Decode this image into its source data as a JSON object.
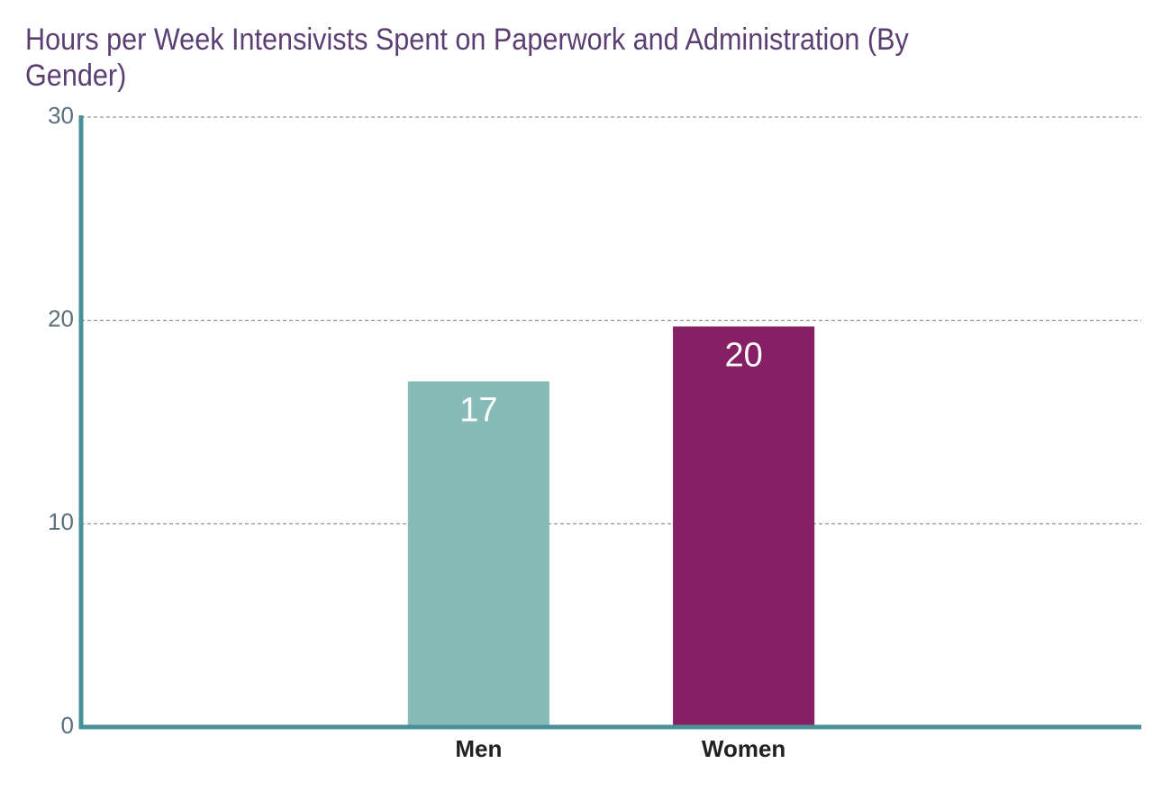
{
  "chart_data": {
    "type": "bar",
    "title": "Hours per Week Intensivists Spent on Paperwork and Administration (By Gender)",
    "categories": [
      null,
      "Men",
      "Women",
      null
    ],
    "values": [
      null,
      17,
      19.7,
      null
    ],
    "value_labels": [
      null,
      "17",
      "20",
      null
    ],
    "colors": [
      "#86bbb8",
      "#86bbb8",
      "#862064",
      "#862064"
    ],
    "ylim": [
      0,
      30
    ],
    "yticks": [
      0,
      10,
      20,
      30
    ],
    "grid": true
  }
}
